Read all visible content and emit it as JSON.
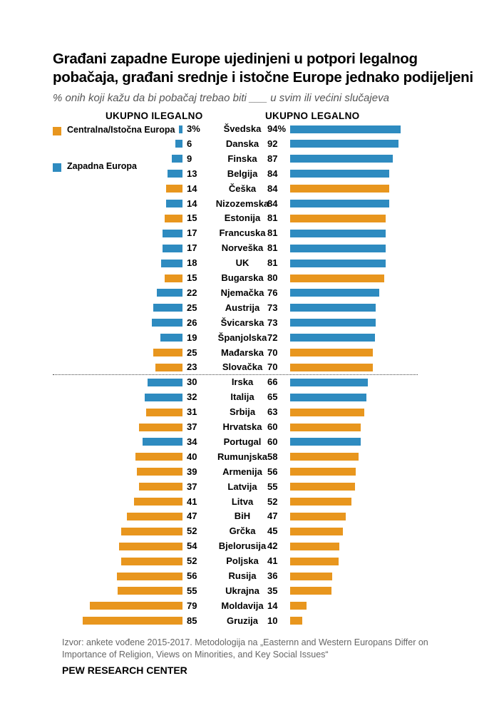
{
  "title": "Građani zapadne Europe ujedinjeni u potpori legalnog pobačaja, građani srednje i istočne Europe jednako podijeljeni",
  "subtitle": "% onih koji kažu da bi pobačaj trebao biti ___ u svim ili većini slučajeva",
  "source": "Izvor: ankete vođene 2015-2017. Metodologija na „Easternn and Western Europans Differ on Importance of Religion, Views on Minorities, and Key Social Issues“",
  "brand": "PEW RESEARCH CENTER",
  "chart_data": {
    "type": "bar",
    "left_header": "UKUPNO ILEGALNO",
    "right_header": "UKUPNO LEGALNO",
    "legend": [
      {
        "key": "E",
        "label": "Centralna/Istočna Europa",
        "color": "#E8961E"
      },
      {
        "key": "W",
        "label": "Zapadna Europa",
        "color": "#2E8BC0"
      }
    ],
    "categories": [
      "Švedska",
      "Danska",
      "Finska",
      "Belgija",
      "Češka",
      "Nizozemska",
      "Estonija",
      "Francuska",
      "Norveška",
      "UK",
      "Bugarska",
      "Njemačka",
      "Austrija",
      "Švicarska",
      "Španjolska",
      "Mađarska",
      "Slovačka",
      "Irska",
      "Italija",
      "Srbija",
      "Hrvatska",
      "Portugal",
      "Rumunjska",
      "Armenija",
      "Latvija",
      "Litva",
      "BiH",
      "Grčka",
      "Bjelorusija",
      "Poljska",
      "Rusija",
      "Ukrajna",
      "Moldavija",
      "Gruzija"
    ],
    "region": [
      "W",
      "W",
      "W",
      "W",
      "E",
      "W",
      "E",
      "W",
      "W",
      "W",
      "E",
      "W",
      "W",
      "W",
      "W",
      "E",
      "E",
      "W",
      "W",
      "E",
      "E",
      "W",
      "E",
      "E",
      "E",
      "E",
      "E",
      "E",
      "E",
      "E",
      "E",
      "E",
      "E",
      "E"
    ],
    "series": [
      {
        "name": "UKUPNO ILEGALNO",
        "values": [
          3,
          6,
          9,
          13,
          14,
          14,
          15,
          17,
          17,
          18,
          15,
          22,
          25,
          26,
          19,
          25,
          23,
          30,
          32,
          31,
          37,
          34,
          40,
          39,
          37,
          41,
          47,
          52,
          54,
          52,
          56,
          55,
          79,
          85
        ]
      },
      {
        "name": "UKUPNO LEGALNO",
        "values": [
          94,
          92,
          87,
          84,
          84,
          84,
          81,
          81,
          81,
          81,
          80,
          76,
          73,
          73,
          72,
          70,
          70,
          66,
          65,
          63,
          60,
          60,
          58,
          56,
          55,
          52,
          47,
          45,
          42,
          41,
          36,
          35,
          14,
          10
        ]
      }
    ],
    "unit_suffix_first_row": "%"
  }
}
